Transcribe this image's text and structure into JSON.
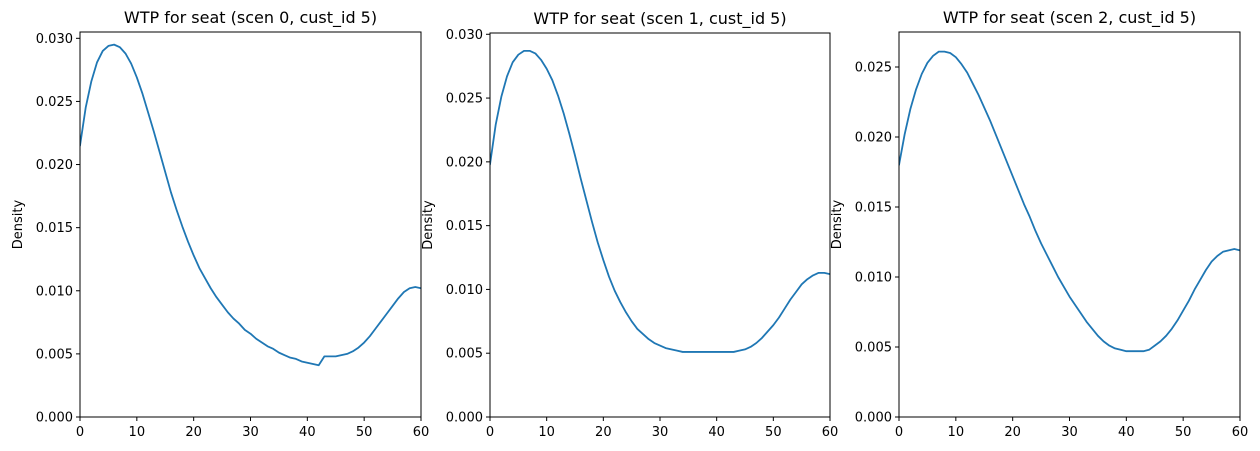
{
  "chart_data": [
    {
      "type": "line",
      "title": "WTP for seat (scen 0, cust_id 5)",
      "xlabel": "",
      "ylabel": "Density",
      "xlim": [
        0,
        60
      ],
      "ylim": [
        0,
        0.0305
      ],
      "xticks": [
        0,
        10,
        20,
        30,
        40,
        50,
        60
      ],
      "yticks": [
        0.0,
        0.005,
        0.01,
        0.015,
        0.02,
        0.025,
        0.03
      ],
      "ytick_labels": [
        "0.000",
        "0.005",
        "0.010",
        "0.015",
        "0.020",
        "0.025",
        "0.030"
      ],
      "grid": false,
      "color": "#1f77b4",
      "series": [
        {
          "x": [
            0,
            1,
            2,
            3,
            4,
            5,
            6,
            7,
            8,
            9,
            10,
            11,
            12,
            13,
            14,
            15,
            16,
            17,
            18,
            19,
            20,
            21,
            22,
            23,
            24,
            25,
            26,
            27,
            28,
            29,
            30,
            31,
            32,
            33,
            34,
            35,
            36,
            37,
            38,
            39,
            40,
            41,
            42,
            43,
            44,
            45,
            46,
            47,
            48,
            49,
            50,
            51,
            52,
            53,
            54,
            55,
            56,
            57,
            58,
            59,
            60
          ],
          "y": [
            0.0215,
            0.0245,
            0.0266,
            0.0281,
            0.029,
            0.0294,
            0.0295,
            0.0293,
            0.0288,
            0.028,
            0.0269,
            0.0256,
            0.0241,
            0.0226,
            0.021,
            0.0194,
            0.0178,
            0.0164,
            0.0151,
            0.0139,
            0.0128,
            0.0118,
            0.011,
            0.0102,
            0.0095,
            0.0089,
            0.0083,
            0.0078,
            0.0074,
            0.0069,
            0.0066,
            0.0062,
            0.0059,
            0.0056,
            0.0054,
            0.0051,
            0.0049,
            0.0047,
            0.0046,
            0.0044,
            0.0043,
            0.0042,
            0.0041,
            0.0048,
            0.0048,
            0.0048,
            0.0049,
            0.005,
            0.0052,
            0.0055,
            0.0059,
            0.0064,
            0.007,
            0.0076,
            0.0082,
            0.0088,
            0.0094,
            0.0099,
            0.0102,
            0.0103,
            0.0102
          ]
        }
      ]
    },
    {
      "type": "line",
      "title": "WTP for seat (scen 1, cust_id 5)",
      "xlabel": "",
      "ylabel": "Density",
      "xlim": [
        0,
        60
      ],
      "ylim": [
        0,
        0.0301
      ],
      "xticks": [
        0,
        10,
        20,
        30,
        40,
        50,
        60
      ],
      "yticks": [
        0.0,
        0.005,
        0.01,
        0.015,
        0.02,
        0.025,
        0.03
      ],
      "ytick_labels": [
        "0.000",
        "0.005",
        "0.010",
        "0.015",
        "0.020",
        "0.025",
        "0.030"
      ],
      "grid": false,
      "color": "#1f77b4",
      "series": [
        {
          "x": [
            0,
            1,
            2,
            3,
            4,
            5,
            6,
            7,
            8,
            9,
            10,
            11,
            12,
            13,
            14,
            15,
            16,
            17,
            18,
            19,
            20,
            21,
            22,
            23,
            24,
            25,
            26,
            27,
            28,
            29,
            30,
            31,
            32,
            33,
            34,
            35,
            36,
            37,
            38,
            39,
            40,
            41,
            42,
            43,
            44,
            45,
            46,
            47,
            48,
            49,
            50,
            51,
            52,
            53,
            54,
            55,
            56,
            57,
            58,
            59,
            60
          ],
          "y": [
            0.0198,
            0.0229,
            0.0251,
            0.0267,
            0.0278,
            0.0284,
            0.0287,
            0.0287,
            0.0285,
            0.028,
            0.0273,
            0.0264,
            0.0252,
            0.0238,
            0.0222,
            0.0205,
            0.0187,
            0.017,
            0.0153,
            0.0137,
            0.0123,
            0.011,
            0.0099,
            0.009,
            0.0082,
            0.0075,
            0.0069,
            0.0065,
            0.0061,
            0.0058,
            0.0056,
            0.0054,
            0.0053,
            0.0052,
            0.0051,
            0.0051,
            0.0051,
            0.0051,
            0.0051,
            0.0051,
            0.0051,
            0.0051,
            0.0051,
            0.0051,
            0.0052,
            0.0053,
            0.0055,
            0.0058,
            0.0062,
            0.0067,
            0.0072,
            0.0078,
            0.0085,
            0.0092,
            0.0098,
            0.0104,
            0.0108,
            0.0111,
            0.0113,
            0.0113,
            0.0112
          ]
        }
      ]
    },
    {
      "type": "line",
      "title": "WTP for seat (scen 2, cust_id 5)",
      "xlabel": "",
      "ylabel": "Density",
      "xlim": [
        0,
        60
      ],
      "ylim": [
        0,
        0.0275
      ],
      "xticks": [
        0,
        10,
        20,
        30,
        40,
        50,
        60
      ],
      "yticks": [
        0.0,
        0.005,
        0.01,
        0.015,
        0.02,
        0.025
      ],
      "ytick_labels": [
        "0.000",
        "0.005",
        "0.010",
        "0.015",
        "0.020",
        "0.025"
      ],
      "grid": false,
      "color": "#1f77b4",
      "series": [
        {
          "x": [
            0,
            1,
            2,
            3,
            4,
            5,
            6,
            7,
            8,
            9,
            10,
            11,
            12,
            13,
            14,
            15,
            16,
            17,
            18,
            19,
            20,
            21,
            22,
            23,
            24,
            25,
            26,
            27,
            28,
            29,
            30,
            31,
            32,
            33,
            34,
            35,
            36,
            37,
            38,
            39,
            40,
            41,
            42,
            43,
            44,
            45,
            46,
            47,
            48,
            49,
            50,
            51,
            52,
            53,
            54,
            55,
            56,
            57,
            58,
            59,
            60
          ],
          "y": [
            0.018,
            0.0202,
            0.022,
            0.0234,
            0.0245,
            0.0253,
            0.0258,
            0.0261,
            0.0261,
            0.026,
            0.0257,
            0.0252,
            0.0246,
            0.0238,
            0.023,
            0.0221,
            0.0212,
            0.0202,
            0.0192,
            0.0182,
            0.0172,
            0.0162,
            0.0152,
            0.0143,
            0.0133,
            0.0124,
            0.0116,
            0.0108,
            0.01,
            0.0093,
            0.0086,
            0.008,
            0.0074,
            0.0068,
            0.0063,
            0.0058,
            0.0054,
            0.0051,
            0.0049,
            0.0048,
            0.0047,
            0.0047,
            0.0047,
            0.0047,
            0.0048,
            0.0051,
            0.0054,
            0.0058,
            0.0063,
            0.0069,
            0.0076,
            0.0083,
            0.0091,
            0.0098,
            0.0105,
            0.0111,
            0.0115,
            0.0118,
            0.0119,
            0.012,
            0.0119
          ]
        }
      ]
    }
  ]
}
